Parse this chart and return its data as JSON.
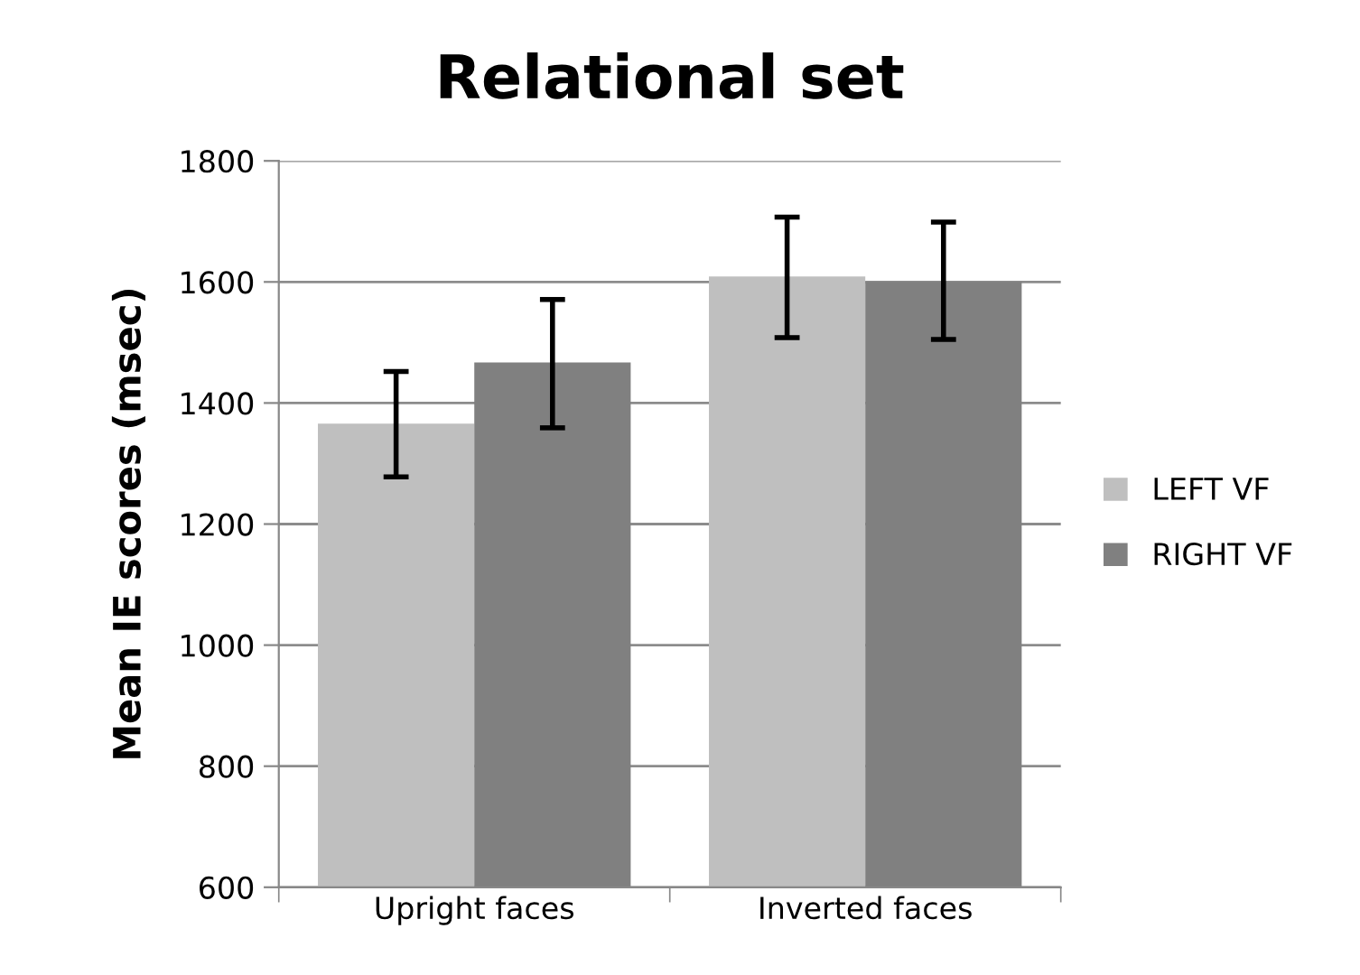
{
  "chart_data": {
    "type": "bar",
    "title": "Relational set",
    "ylabel": "Mean IE scores (msec)",
    "categories": [
      "Upright faces",
      "Inverted faces"
    ],
    "series": [
      {
        "name": "LEFT VF",
        "color": "#bfbfbf",
        "values": [
          1366,
          1609
        ],
        "errors": [
          [
            1278,
            1452
          ],
          [
            1508,
            1707
          ]
        ]
      },
      {
        "name": "RIGHT VF",
        "color": "#808080",
        "values": [
          1467,
          1600
        ],
        "errors": [
          [
            1359,
            1571
          ],
          [
            1505,
            1699
          ]
        ]
      }
    ],
    "ylim": [
      600,
      1800
    ],
    "yticks": [
      600,
      800,
      1000,
      1200,
      1400,
      1600,
      1800
    ],
    "grid": "y",
    "legend": "right"
  }
}
